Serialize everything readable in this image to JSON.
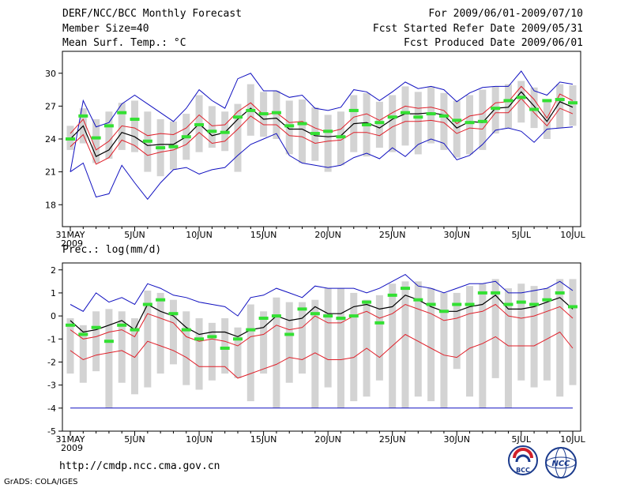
{
  "header": {
    "title": "DERF/NCC/BCC Monthly Forecast",
    "member_size": "Member Size=40",
    "variable": "Mean Surf. Temp.: °C",
    "period": "For 2009/06/01-2009/07/10",
    "started": "Fcst Started Refer Date 2009/05/31",
    "produced": "Fcst Produced Date 2009/06/01"
  },
  "footer": {
    "url": "http://cmdp.ncc.cma.gov.cn",
    "credit": "GrADS: COLA/IGES",
    "logo_left": "BCC",
    "logo_right": "NCC"
  },
  "colors": {
    "bar": "#d3d3d3",
    "ensemble_mean": "#000000",
    "spread": "#e0202a",
    "extreme": "#1010c0",
    "observed": "#33e033"
  },
  "chart_data": [
    {
      "type": "line",
      "title": "Mean Surf. Temp.: °C",
      "xlabel": "",
      "ylabel": "",
      "x_tick_labels": [
        "31MAY",
        "5JUN",
        "10JUN",
        "15JUN",
        "20JUN",
        "25JUN",
        "30JUN",
        "5JUL",
        "10JUL"
      ],
      "x_year_label": "2009",
      "y_ticks": [
        18,
        21,
        24,
        27,
        30
      ],
      "ylim": [
        16,
        32
      ],
      "x_days": [
        1,
        2,
        3,
        4,
        5,
        6,
        7,
        8,
        9,
        10,
        11,
        12,
        13,
        14,
        15,
        16,
        17,
        18,
        19,
        20,
        21,
        22,
        23,
        24,
        25,
        26,
        27,
        28,
        29,
        30,
        31,
        32,
        33,
        34,
        35,
        36,
        37,
        38,
        39,
        40
      ],
      "series": [
        {
          "name": "spread_bar_low",
          "values": [
            23.0,
            23.6,
            21.8,
            22.2,
            23.0,
            22.8,
            21.0,
            20.6,
            21.2,
            22.1,
            22.8,
            23.2,
            22.9,
            21.0,
            24.3,
            24.2,
            24.0,
            22.6,
            21.8,
            22.0,
            21.0,
            21.6,
            22.8,
            22.4,
            23.2,
            22.8,
            23.4,
            22.6,
            23.6,
            23.0,
            22.3,
            22.6,
            23.0,
            24.5,
            25.0,
            25.5,
            25.0,
            24.0,
            25.0,
            25.2
          ]
        },
        {
          "name": "spread_bar_high",
          "values": [
            25.2,
            26.8,
            25.8,
            26.5,
            27.3,
            27.5,
            26.5,
            25.8,
            25.6,
            26.3,
            28.0,
            27.0,
            26.5,
            27.2,
            29.0,
            28.3,
            28.4,
            27.5,
            27.6,
            26.9,
            26.2,
            26.5,
            28.0,
            28.2,
            27.4,
            28.0,
            28.8,
            28.3,
            28.8,
            28.2,
            27.5,
            28.0,
            28.5,
            28.8,
            29.0,
            29.3,
            28.7,
            27.6,
            29.0,
            28.9
          ]
        },
        {
          "name": "max_member",
          "values": [
            21.0,
            27.5,
            25.1,
            25.5,
            27.2,
            28.0,
            27.2,
            26.4,
            25.6,
            26.8,
            28.5,
            27.5,
            26.8,
            29.5,
            30.0,
            28.4,
            28.4,
            27.8,
            28.0,
            26.8,
            26.6,
            26.9,
            28.5,
            28.3,
            27.5,
            28.3,
            29.2,
            28.6,
            28.8,
            28.5,
            27.4,
            28.2,
            28.7,
            28.8,
            28.8,
            30.2,
            28.4,
            28.0,
            29.2,
            29.0
          ]
        },
        {
          "name": "upper_spread",
          "values": [
            24.5,
            25.8,
            23.0,
            23.8,
            25.2,
            25.0,
            24.3,
            24.5,
            24.4,
            25.0,
            26.2,
            25.2,
            25.3,
            26.5,
            27.3,
            26.2,
            26.4,
            25.5,
            25.6,
            25.0,
            24.6,
            24.9,
            26.0,
            26.3,
            25.7,
            26.4,
            27.0,
            26.8,
            26.9,
            26.6,
            25.4,
            26.1,
            26.3,
            27.3,
            27.4,
            28.8,
            27.6,
            25.9,
            28.1,
            27.5
          ]
        },
        {
          "name": "ensemble_mean",
          "values": [
            24.0,
            25.2,
            22.4,
            23.0,
            24.6,
            24.2,
            23.4,
            23.5,
            23.5,
            24.2,
            25.4,
            24.3,
            24.6,
            25.8,
            26.8,
            25.8,
            25.9,
            24.9,
            24.9,
            24.3,
            24.2,
            24.3,
            25.4,
            25.5,
            25.0,
            25.8,
            26.3,
            26.3,
            26.4,
            26.2,
            25.0,
            25.6,
            25.5,
            26.8,
            26.9,
            28.3,
            27.0,
            25.6,
            27.4,
            26.9
          ]
        },
        {
          "name": "lower_spread",
          "values": [
            23.3,
            24.4,
            21.7,
            22.3,
            23.9,
            23.4,
            22.5,
            22.8,
            23.0,
            23.5,
            24.6,
            23.6,
            23.8,
            24.9,
            26.1,
            25.3,
            25.3,
            24.3,
            24.2,
            23.6,
            23.8,
            23.9,
            24.6,
            24.6,
            24.3,
            25.1,
            25.6,
            25.6,
            25.7,
            25.5,
            24.5,
            25.0,
            24.9,
            26.4,
            26.4,
            27.7,
            26.4,
            25.2,
            26.8,
            26.3
          ]
        },
        {
          "name": "min_member",
          "values": [
            21.0,
            21.8,
            18.7,
            19.0,
            21.6,
            20.0,
            18.5,
            20.0,
            21.2,
            21.4,
            20.8,
            21.2,
            21.4,
            22.5,
            23.5,
            24.0,
            24.5,
            22.5,
            21.8,
            21.6,
            21.4,
            21.6,
            22.3,
            22.7,
            22.2,
            23.2,
            22.4,
            23.5,
            24.0,
            23.6,
            22.1,
            22.5,
            23.5,
            24.8,
            25.0,
            24.7,
            23.7,
            24.9,
            25.0,
            25.1
          ]
        },
        {
          "name": "observed",
          "values": [
            24.0,
            26.1,
            24.1,
            25.2,
            26.4,
            25.8,
            23.8,
            23.2,
            23.3,
            24.2,
            25.3,
            24.7,
            24.6,
            26.0,
            26.6,
            26.3,
            26.4,
            25.2,
            25.4,
            24.5,
            24.7,
            24.2,
            26.6,
            25.3,
            25.5,
            26.0,
            26.4,
            26.0,
            26.3,
            26.1,
            25.7,
            25.5,
            25.6,
            26.8,
            27.5,
            27.8,
            26.7,
            27.5,
            27.6,
            27.3
          ]
        }
      ]
    },
    {
      "type": "line",
      "title": "Prec.: log(mm/d)",
      "xlabel": "",
      "ylabel": "",
      "x_tick_labels": [
        "31MAY",
        "5JUN",
        "10JUN",
        "15JUN",
        "20JUN",
        "25JUN",
        "30JUN",
        "5JUL",
        "10JUL"
      ],
      "x_year_label": "2009",
      "y_ticks": [
        -5,
        -4,
        -3,
        -2,
        -1,
        0,
        1,
        2
      ],
      "ylim": [
        -5,
        2.3
      ],
      "x_days": [
        1,
        2,
        3,
        4,
        5,
        6,
        7,
        8,
        9,
        10,
        11,
        12,
        13,
        14,
        15,
        16,
        17,
        18,
        19,
        20,
        21,
        22,
        23,
        24,
        25,
        26,
        27,
        28,
        29,
        30,
        31,
        32,
        33,
        34,
        35,
        36,
        37,
        38,
        39,
        40
      ],
      "series": [
        {
          "name": "spread_bar_low",
          "values": [
            -2.5,
            -2.9,
            -2.4,
            -4.0,
            -2.9,
            -3.4,
            -3.1,
            -2.5,
            -2.1,
            -3.0,
            -3.2,
            -2.8,
            -2.5,
            -2.7,
            -3.7,
            -2.5,
            -4.0,
            -2.9,
            -2.5,
            -4.0,
            -3.1,
            -4.0,
            -3.7,
            -3.5,
            -2.8,
            -4.0,
            -4.0,
            -3.5,
            -3.7,
            -4.0,
            -2.3,
            -3.5,
            -4.0,
            -2.7,
            -4.0,
            -2.8,
            -3.1,
            -2.8,
            -3.5,
            -3.0
          ]
        },
        {
          "name": "spread_bar_high",
          "values": [
            -0.1,
            -0.4,
            0.2,
            0.3,
            0.2,
            -0.1,
            1.1,
            1.0,
            0.7,
            0.2,
            -0.1,
            -0.3,
            -0.1,
            -0.5,
            0.5,
            0.2,
            0.8,
            0.6,
            0.6,
            0.7,
            1.2,
            1.2,
            1.0,
            0.7,
            0.9,
            1.4,
            1.5,
            1.5,
            1.2,
            1.0,
            1.0,
            1.3,
            1.4,
            1.6,
            1.2,
            1.4,
            1.3,
            1.2,
            1.6,
            1.6
          ]
        },
        {
          "name": "max_member",
          "values": [
            0.5,
            0.2,
            1.0,
            0.6,
            0.8,
            0.5,
            1.4,
            1.2,
            0.9,
            0.8,
            0.6,
            0.5,
            0.4,
            0.0,
            0.8,
            0.9,
            1.2,
            1.0,
            0.8,
            1.3,
            1.2,
            1.2,
            1.2,
            1.0,
            1.2,
            1.5,
            1.8,
            1.3,
            1.2,
            1.0,
            1.2,
            1.4,
            1.4,
            1.5,
            1.0,
            1.0,
            1.1,
            1.2,
            1.5,
            1.1
          ]
        },
        {
          "name": "ensemble_mean",
          "values": [
            -0.2,
            -0.7,
            -0.6,
            -0.4,
            -0.2,
            -0.6,
            0.5,
            0.2,
            0.0,
            -0.5,
            -0.8,
            -0.7,
            -0.7,
            -0.9,
            -0.6,
            -0.5,
            0.0,
            -0.2,
            -0.1,
            0.4,
            0.1,
            0.1,
            0.4,
            0.5,
            0.3,
            0.4,
            0.9,
            0.7,
            0.4,
            0.2,
            0.2,
            0.4,
            0.5,
            0.9,
            0.3,
            0.3,
            0.4,
            0.6,
            0.8,
            0.3
          ]
        },
        {
          "name": "upper_spread",
          "values": [
            -0.6,
            -1.0,
            -0.9,
            -0.7,
            -0.6,
            -0.9,
            0.1,
            -0.1,
            -0.3,
            -0.9,
            -1.1,
            -1.0,
            -1.1,
            -1.3,
            -0.9,
            -0.8,
            -0.4,
            -0.6,
            -0.5,
            0.0,
            -0.3,
            -0.3,
            0.0,
            0.2,
            -0.1,
            0.1,
            0.5,
            0.3,
            0.1,
            -0.2,
            -0.1,
            0.1,
            0.2,
            0.5,
            0.0,
            -0.1,
            0.0,
            0.2,
            0.4,
            -0.1
          ]
        },
        {
          "name": "lower_spread",
          "values": [
            -1.5,
            -1.9,
            -1.7,
            -1.6,
            -1.5,
            -1.8,
            -1.1,
            -1.3,
            -1.5,
            -1.8,
            -2.2,
            -2.2,
            -2.2,
            -2.7,
            -2.5,
            -2.3,
            -2.1,
            -1.8,
            -1.9,
            -1.6,
            -1.9,
            -1.9,
            -1.8,
            -1.4,
            -1.8,
            -1.3,
            -0.8,
            -1.1,
            -1.4,
            -1.7,
            -1.8,
            -1.4,
            -1.2,
            -0.9,
            -1.3,
            -1.3,
            -1.3,
            -1.0,
            -0.7,
            -1.4
          ]
        },
        {
          "name": "min_member",
          "values": [
            -4.0,
            -4.0,
            -4.0,
            -4.0,
            -4.0,
            -4.0,
            -4.0,
            -4.0,
            -4.0,
            -4.0,
            -4.0,
            -4.0,
            -4.0,
            -4.0,
            -4.0,
            -4.0,
            -4.0,
            -4.0,
            -4.0,
            -4.0,
            -4.0,
            -4.0,
            -4.0,
            -4.0,
            -4.0,
            -4.0,
            -4.0,
            -4.0,
            -4.0,
            -4.0,
            -4.0,
            -4.0,
            -4.0,
            -4.0,
            -4.0,
            -4.0,
            -4.0,
            -4.0,
            -4.0,
            -4.0
          ]
        },
        {
          "name": "observed",
          "values": [
            -0.4,
            -0.8,
            -0.5,
            -1.1,
            -0.4,
            -0.6,
            0.5,
            0.7,
            0.1,
            -0.6,
            -1.0,
            -0.9,
            -1.4,
            -1.0,
            -0.6,
            -0.1,
            0.0,
            -0.8,
            0.3,
            0.1,
            0.0,
            -0.1,
            0.0,
            0.6,
            -0.3,
            0.9,
            1.2,
            0.7,
            0.5,
            0.2,
            0.5,
            0.5,
            1.0,
            1.0,
            0.5,
            0.6,
            0.5,
            0.7,
            1.0,
            0.4
          ]
        }
      ]
    }
  ]
}
